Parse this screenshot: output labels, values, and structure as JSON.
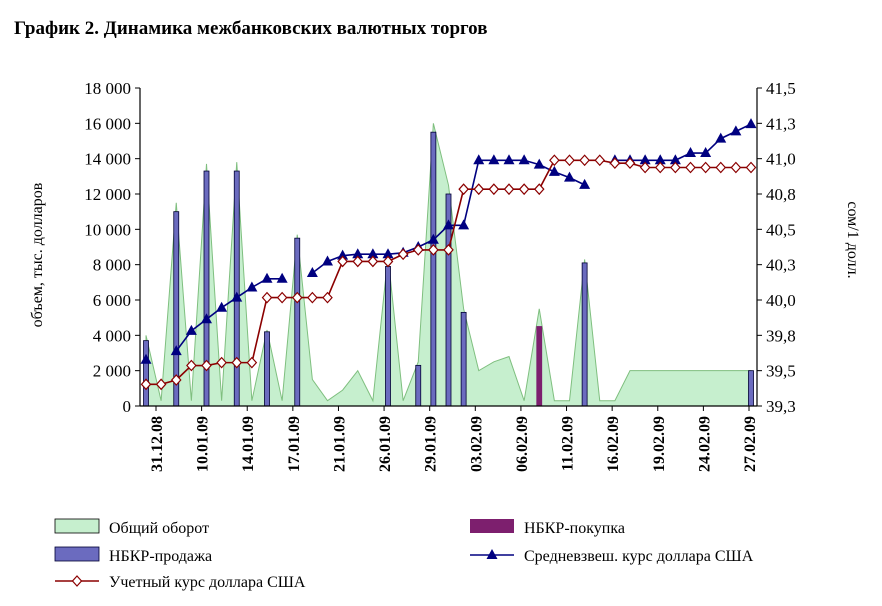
{
  "chart_data": {
    "type": "area",
    "title": "График 2. Динамика межбанковских валютных торгов",
    "ylabel": "объем, тыс. долларов",
    "y2label": "сом/1 долл.",
    "ylim": [
      0,
      18000
    ],
    "y2lim": [
      39.3,
      41.5
    ],
    "y_ticks": [
      "0",
      "2 000",
      "4 000",
      "6 000",
      "8 000",
      "10 000",
      "12 000",
      "14 000",
      "16 000",
      "18 000"
    ],
    "y2_ticks": [
      "39,3",
      "39,5",
      "39,8",
      "40,0",
      "40,3",
      "40,5",
      "40,8",
      "41,0",
      "41,3",
      "41,5"
    ],
    "x_ticks": [
      "31.12.08",
      "10.01.09",
      "14.01.09",
      "17.01.09",
      "21.01.09",
      "26.01.09",
      "29.01.09",
      "03.02.09",
      "06.02.09",
      "11.02.09",
      "16.02.09",
      "19.02.09",
      "24.02.09",
      "27.02.09"
    ],
    "x": [
      0,
      1,
      2,
      3,
      4,
      5,
      6,
      7,
      8,
      9,
      10,
      11,
      12,
      13,
      14,
      15,
      16,
      17,
      18,
      19,
      20,
      21,
      22,
      23,
      24,
      25,
      26,
      27,
      28,
      29,
      30,
      31,
      32,
      33,
      34,
      35,
      36,
      37,
      38,
      39,
      40
    ],
    "series": [
      {
        "name": "Общий оборот",
        "kind": "area",
        "color": "#c6efce",
        "values": [
          4000,
          300,
          11500,
          300,
          13700,
          300,
          13800,
          300,
          4300,
          300,
          9700,
          1500,
          300,
          900,
          2000,
          300,
          8500,
          300,
          2500,
          16000,
          12500,
          5500,
          2000,
          2500,
          2800,
          300,
          5500,
          300,
          300,
          8300,
          300,
          300,
          2000,
          2000,
          2000,
          2000,
          2000,
          2000,
          2000,
          2000,
          2000
        ]
      },
      {
        "name": "НБКР-продажа",
        "kind": "bar",
        "color": "#6b6bbf",
        "values": [
          3700,
          0,
          11000,
          0,
          13300,
          0,
          13300,
          0,
          4200,
          0,
          9500,
          0,
          0,
          0,
          0,
          0,
          7900,
          0,
          2300,
          15500,
          12000,
          5300,
          0,
          0,
          0,
          0,
          0,
          0,
          0,
          8100,
          0,
          0,
          0,
          0,
          0,
          0,
          0,
          0,
          0,
          0,
          2000
        ]
      },
      {
        "name": "НБКР-покупка",
        "kind": "bar",
        "color": "#7d1f6e",
        "values": [
          0,
          0,
          0,
          0,
          0,
          0,
          0,
          0,
          0,
          0,
          0,
          0,
          0,
          0,
          0,
          0,
          0,
          0,
          0,
          0,
          0,
          0,
          0,
          0,
          0,
          0,
          4500,
          0,
          0,
          0,
          0,
          0,
          0,
          0,
          0,
          0,
          0,
          0,
          0,
          0,
          0
        ]
      },
      {
        "name": "Средневзвеш. курс доллара США",
        "kind": "line",
        "axis": "right",
        "color": "#000080",
        "values": [
          39.62,
          null,
          39.68,
          39.82,
          39.9,
          39.98,
          40.05,
          40.12,
          40.18,
          40.18,
          null,
          40.22,
          40.3,
          40.34,
          40.35,
          40.35,
          40.35,
          40.36,
          40.4,
          40.45,
          40.55,
          40.55,
          41.0,
          41.0,
          41.0,
          41.0,
          40.97,
          40.92,
          40.88,
          40.83,
          null,
          41.0,
          41.0,
          41.0,
          41.0,
          41.0,
          41.05,
          41.05,
          41.15,
          41.2,
          41.25
        ]
      },
      {
        "name": "Учетный курс доллара США",
        "kind": "line",
        "axis": "right",
        "color": "#8b0000",
        "values": [
          39.45,
          39.45,
          39.48,
          39.58,
          39.58,
          39.6,
          39.6,
          39.6,
          40.05,
          40.05,
          40.05,
          40.05,
          40.05,
          40.3,
          40.3,
          40.3,
          40.3,
          40.35,
          40.38,
          40.38,
          40.38,
          40.8,
          40.8,
          40.8,
          40.8,
          40.8,
          40.8,
          41.0,
          41.0,
          41.0,
          41.0,
          40.98,
          40.98,
          40.95,
          40.95,
          40.95,
          40.95,
          40.95,
          40.95,
          40.95,
          40.95
        ]
      }
    ],
    "legend": {
      "placement": "bottom",
      "items": [
        {
          "label": "Общий оборот",
          "symbol": "area"
        },
        {
          "label": "НБКР-покупка",
          "symbol": "bar-buy"
        },
        {
          "label": "НБКР-продажа",
          "symbol": "bar-sell"
        },
        {
          "label": "Средневзвеш. курс доллара США",
          "symbol": "line-triangle"
        },
        {
          "label": "Учетный курс доллара США",
          "symbol": "line-diamond"
        }
      ]
    },
    "grid": false
  }
}
